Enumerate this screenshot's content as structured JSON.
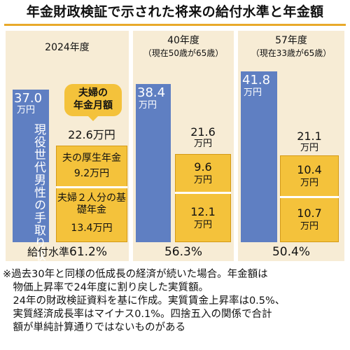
{
  "title": "年金財政検証で示された将来の給付水準と年金額",
  "bubble": [
    "夫婦の",
    "年金月額"
  ],
  "note": [
    "※過去30年と同様の低成長の経済が続いた場合。年金額は",
    "　物価上昇率で24年度に割り戻した実質額。",
    "　24年の財政検証資料を基に作成。実質賃金上昇率は0.5%、",
    "　実質経済成長率はマイナス0.1%。四捨五入の関係で合計",
    "　額が単純計算通りではないものがある"
  ],
  "chart_data": {
    "type": "bar",
    "title": "年金財政検証で示された将来の給付水準と年金額",
    "unit": "万円",
    "categories": [
      {
        "label": "2024年度",
        "sub": ""
      },
      {
        "label": "40年度",
        "sub": "（現在50歳が65歳）"
      },
      {
        "label": "57年度",
        "sub": "（現在33歳が65歳）"
      }
    ],
    "series": [
      {
        "name": "現役世代男性の手取り収入",
        "values": [
          37.0,
          38.4,
          41.8
        ]
      },
      {
        "name": "夫の厚生年金",
        "values": [
          9.2,
          9.6,
          10.4
        ]
      },
      {
        "name": "夫婦２人分の基礎年金",
        "values": [
          13.4,
          12.1,
          10.7
        ]
      }
    ],
    "totals": [
      22.6,
      21.6,
      21.1
    ],
    "rate_label": "給付水準",
    "rates": [
      "61.2%",
      "56.3%",
      "50.4%"
    ],
    "display": {
      "income": [
        "37.0",
        "38.4",
        "41.8"
      ],
      "total": [
        "22.6万円",
        "21.6",
        "21.1"
      ],
      "pension": [
        "9.2万円",
        "9.6",
        "10.4"
      ],
      "basic": [
        "13.4万円",
        "12.1",
        "10.7"
      ]
    },
    "colors": {
      "income": "#5f7fc2",
      "pension": "#f4c23b",
      "panel": "#f7ecd5",
      "accent": "#e8a92a"
    }
  }
}
